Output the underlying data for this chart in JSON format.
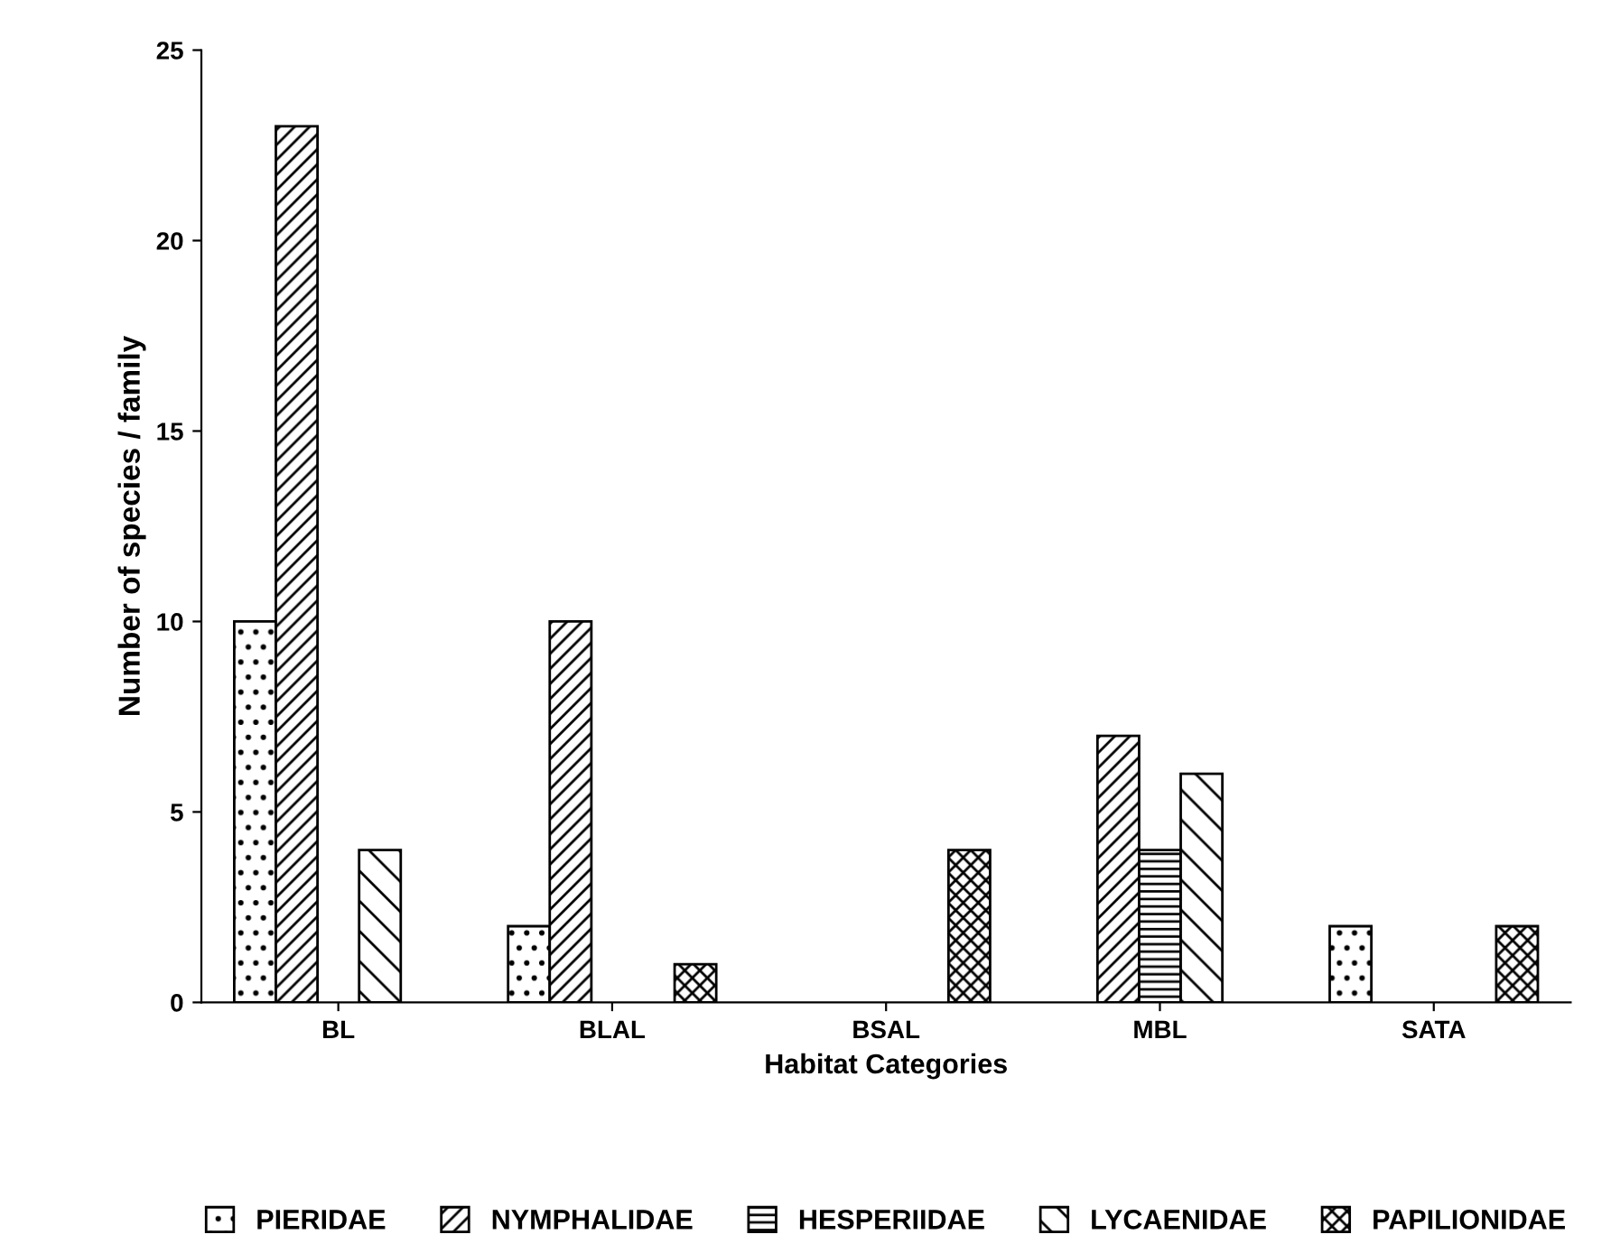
{
  "chart_data": {
    "type": "bar",
    "xlabel": "Habitat Categories",
    "ylabel": "Number of species / family",
    "categories": [
      "BL",
      "BLAL",
      "BSAL",
      "MBL",
      "SATA"
    ],
    "series": [
      {
        "name": "PIERIDAE",
        "color": "#000000",
        "values": [
          10,
          2,
          null,
          null,
          2
        ]
      },
      {
        "name": "NYMPHALIDAE",
        "color": "#000000",
        "values": [
          23,
          10,
          null,
          7,
          null
        ]
      },
      {
        "name": "HESPERIIDAE",
        "color": "#000000",
        "values": [
          null,
          null,
          null,
          4,
          null
        ]
      },
      {
        "name": "LYCAENIDAE",
        "color": "#000000",
        "values": [
          4,
          null,
          null,
          6,
          null
        ]
      },
      {
        "name": "PAPILIONIDAE",
        "color": "#000000",
        "values": [
          null,
          1,
          4,
          null,
          2
        ]
      }
    ],
    "ylim": [
      0,
      25
    ],
    "yticks": [
      0,
      5,
      10,
      15,
      20,
      25
    ],
    "grid": false,
    "legend": "bottom"
  }
}
